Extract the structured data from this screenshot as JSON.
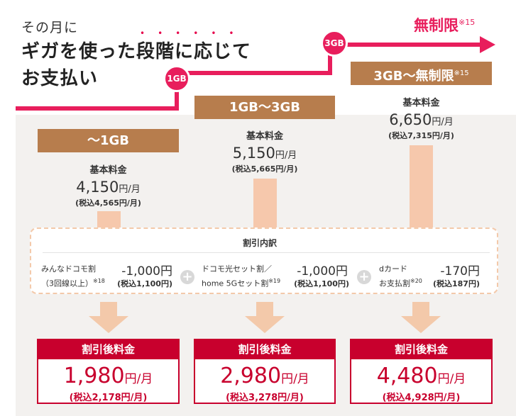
{
  "header": {
    "line1": "その月に",
    "line2": "ギガを使った段階に応じて",
    "line3": "お支払い",
    "emphasis_dots": "••••••",
    "marker_1gb": "1GB",
    "marker_3gb": "3GB",
    "unlimited_label": "無制限",
    "unlimited_note": "※15"
  },
  "tiers": [
    {
      "label": "〜1GB",
      "note": "",
      "base_label": "基本料金",
      "price": "4,150",
      "unit": "円/月",
      "tax_incl": "(税込4,565円/月)"
    },
    {
      "label": "1GB〜3GB",
      "note": "",
      "base_label": "基本料金",
      "price": "5,150",
      "unit": "円/月",
      "tax_incl": "(税込5,665円/月)"
    },
    {
      "label": "3GB〜無制限",
      "note": "※15",
      "base_label": "基本料金",
      "price": "6,650",
      "unit": "円/月",
      "tax_incl": "(税込7,315円/月)"
    }
  ],
  "discount": {
    "title": "割引内訳",
    "items": [
      {
        "name_line1": "みんなドコモ割",
        "name_line2": "（3回線以上）",
        "note": "※18",
        "amount": "-1,000円",
        "tax": "(税込1,100円)"
      },
      {
        "name_line1": "ドコモ光セット割／",
        "name_line2": "home 5Gセット割",
        "note": "※19",
        "amount": "-1,000円",
        "tax": "(税込1,100円)"
      },
      {
        "name_line1": "dカード",
        "name_line2": "お支払割",
        "note": "※20",
        "amount": "-170円",
        "tax": "(税込187円)"
      }
    ],
    "plus_symbol": "+"
  },
  "finals": [
    {
      "head": "割引後料金",
      "price": "1,980",
      "unit": "円/月",
      "tax_incl": "(税込2,178円/月)"
    },
    {
      "head": "割引後料金",
      "price": "2,980",
      "unit": "円/月",
      "tax_incl": "(税込3,278円/月)"
    },
    {
      "head": "割引後料金",
      "price": "4,480",
      "unit": "円/月",
      "tax_incl": "(税込4,928円/月)"
    }
  ],
  "colors": {
    "accent": "#e81e5c",
    "tier_brown": "#b77d4d",
    "final_red": "#c8002d",
    "pillar": "#f6c8ac",
    "panel": "#f3f1ef"
  }
}
